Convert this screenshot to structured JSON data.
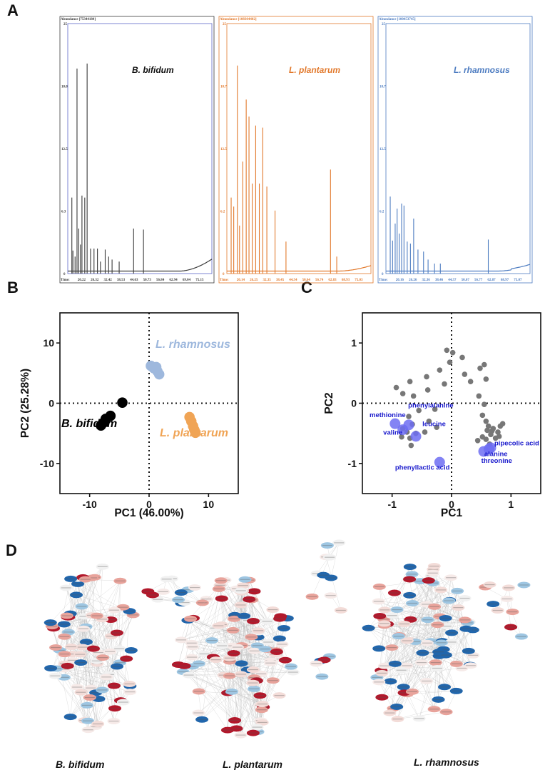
{
  "panels": {
    "a": "A",
    "b": "B",
    "c": "C",
    "d": "D"
  },
  "chart_data": [
    {
      "type": "line",
      "panel": "A",
      "subplots": [
        {
          "title": "B. bifidum",
          "abundance_label": "Abundance [75344184]",
          "color": "#3a3a3a",
          "ytick_labels": [
            "25",
            "18.8",
            "12.5",
            "6.3",
            "0"
          ],
          "ylim": [
            0,
            25
          ],
          "time_label": "Time:",
          "time_ticks": [
            "20.22",
            "26.32",
            "32.42",
            "38.53",
            "44.63",
            "50.73",
            "56.84",
            "62.94",
            "69.04",
            "75.15"
          ],
          "xlim": [
            14,
            81
          ],
          "peaks": [
            {
              "x": 15.9,
              "y": 7.6
            },
            {
              "x": 16.4,
              "y": 2.3
            },
            {
              "x": 17.4,
              "y": 1.7
            },
            {
              "x": 18.3,
              "y": 20.5
            },
            {
              "x": 19.1,
              "y": 4.5
            },
            {
              "x": 19.9,
              "y": 2.9
            },
            {
              "x": 20.6,
              "y": 7.8
            },
            {
              "x": 21.9,
              "y": 7.6
            },
            {
              "x": 23.0,
              "y": 21.0
            },
            {
              "x": 24.6,
              "y": 2.5
            },
            {
              "x": 26.2,
              "y": 2.5
            },
            {
              "x": 27.8,
              "y": 2.5
            },
            {
              "x": 29.2,
              "y": 1.2
            },
            {
              "x": 31.4,
              "y": 2.4
            },
            {
              "x": 33.0,
              "y": 1.7
            },
            {
              "x": 34.6,
              "y": 1.4
            },
            {
              "x": 37.9,
              "y": 1.2
            },
            {
              "x": 44.6,
              "y": 4.5
            },
            {
              "x": 49.2,
              "y": 4.4
            }
          ]
        },
        {
          "title": "L. plantarum",
          "abundance_label": "Abundance [108304402]",
          "color": "#e2792c",
          "ytick_labels": [
            "25",
            "18.7",
            "12.5",
            "6.2",
            "0"
          ],
          "ylim": [
            0,
            25
          ],
          "time_label": "Time:",
          "time_ticks": [
            "20.14",
            "26.25",
            "32.35",
            "38.45",
            "44.54",
            "50.64",
            "56.74",
            "62.83",
            "68.93",
            "75.03"
          ],
          "xlim": [
            14,
            81
          ],
          "peaks": [
            {
              "x": 16.0,
              "y": 7.6
            },
            {
              "x": 17.2,
              "y": 6.7
            },
            {
              "x": 18.9,
              "y": 20.8
            },
            {
              "x": 19.9,
              "y": 4.8
            },
            {
              "x": 21.4,
              "y": 11.2
            },
            {
              "x": 23.0,
              "y": 17.4
            },
            {
              "x": 24.3,
              "y": 15.7
            },
            {
              "x": 25.8,
              "y": 9.0
            },
            {
              "x": 27.4,
              "y": 14.8
            },
            {
              "x": 29.1,
              "y": 9.0
            },
            {
              "x": 30.7,
              "y": 14.6
            },
            {
              "x": 32.6,
              "y": 8.7
            },
            {
              "x": 36.4,
              "y": 6.3
            },
            {
              "x": 41.5,
              "y": 3.2
            },
            {
              "x": 62.2,
              "y": 10.4
            },
            {
              "x": 65.1,
              "y": 1.7
            }
          ]
        },
        {
          "title": "L. rhamnosus",
          "abundance_label": "Abundance [100453745]",
          "color": "#4d7cc1",
          "ytick_labels": [
            "25",
            "18.7",
            "12.5",
            "6.2",
            "0"
          ],
          "ylim": [
            0,
            25
          ],
          "time_label": "Time:",
          "time_ticks": [
            "20.16",
            "26.26",
            "32.36",
            "38.46",
            "44.57",
            "50.67",
            "56.77",
            "62.87",
            "68.97",
            "75.07"
          ],
          "xlim": [
            14,
            81
          ],
          "peaks": [
            {
              "x": 16.0,
              "y": 7.7
            },
            {
              "x": 17.1,
              "y": 3.3
            },
            {
              "x": 18.3,
              "y": 5.0
            },
            {
              "x": 19.2,
              "y": 6.5
            },
            {
              "x": 20.2,
              "y": 4.0
            },
            {
              "x": 21.3,
              "y": 7.0
            },
            {
              "x": 22.4,
              "y": 6.8
            },
            {
              "x": 23.9,
              "y": 3.2
            },
            {
              "x": 25.4,
              "y": 3.0
            },
            {
              "x": 26.9,
              "y": 5.5
            },
            {
              "x": 28.9,
              "y": 2.4
            },
            {
              "x": 31.5,
              "y": 2.2
            },
            {
              "x": 33.6,
              "y": 1.4
            },
            {
              "x": 36.6,
              "y": 1.0
            },
            {
              "x": 39.3,
              "y": 1.0
            },
            {
              "x": 61.6,
              "y": 3.4
            }
          ]
        }
      ]
    },
    {
      "type": "scatter",
      "panel": "B",
      "xlabel": "PC1 (46.00%)",
      "ylabel": "PC2 (25.28%)",
      "xlim": [
        -15,
        15
      ],
      "ylim": [
        -15,
        15
      ],
      "xticks": [
        -10,
        0,
        10
      ],
      "yticks": [
        -10,
        0,
        10
      ],
      "series": [
        {
          "name": "B. bifidum",
          "color": "#000000",
          "points": [
            [
              -4.5,
              0.1
            ],
            [
              -6.5,
              -2.1
            ],
            [
              -7.3,
              -2.6
            ],
            [
              -7.6,
              -3.2
            ],
            [
              -8.1,
              -3.7
            ]
          ]
        },
        {
          "name": "L. rhamnosus",
          "color": "#9eb8dd",
          "points": [
            [
              0.3,
              6.2
            ],
            [
              0.8,
              5.8
            ],
            [
              1.2,
              6.0
            ],
            [
              1.4,
              5.3
            ],
            [
              1.7,
              4.8
            ]
          ]
        },
        {
          "name": "L. plantarum",
          "color": "#f0a455",
          "points": [
            [
              6.8,
              -2.3
            ],
            [
              7.1,
              -3.0
            ],
            [
              7.4,
              -3.8
            ],
            [
              7.6,
              -4.4
            ],
            [
              7.8,
              -4.9
            ]
          ]
        }
      ]
    },
    {
      "type": "scatter",
      "panel": "C",
      "xlabel": "PC1",
      "ylabel": "PC2",
      "xlim": [
        -1.5,
        1.5
      ],
      "ylim": [
        -1.5,
        1.5
      ],
      "xticks": [
        -1,
        0,
        1
      ],
      "yticks": [
        -1,
        0,
        1
      ],
      "tick_labels_x": [
        "-1",
        "0",
        "1"
      ],
      "tick_labels_y": [
        "-1",
        "0",
        "1"
      ],
      "background_points": [
        [
          -0.08,
          0.88
        ],
        [
          0.02,
          0.84
        ],
        [
          -0.03,
          0.68
        ],
        [
          0.18,
          0.76
        ],
        [
          0.48,
          0.58
        ],
        [
          0.55,
          0.64
        ],
        [
          0.22,
          0.48
        ],
        [
          0.58,
          0.4
        ],
        [
          -0.2,
          0.55
        ],
        [
          -0.42,
          0.44
        ],
        [
          -0.12,
          0.32
        ],
        [
          0.32,
          0.36
        ],
        [
          -0.7,
          0.36
        ],
        [
          -0.93,
          0.26
        ],
        [
          -0.4,
          0.22
        ],
        [
          -0.82,
          0.16
        ],
        [
          -0.64,
          0.12
        ],
        [
          0.46,
          0.12
        ],
        [
          0.55,
          -0.02
        ],
        [
          0.52,
          -0.2
        ],
        [
          0.58,
          -0.3
        ],
        [
          -0.28,
          -0.1
        ],
        [
          -0.55,
          -0.12
        ],
        [
          -0.38,
          -0.3
        ],
        [
          -0.72,
          -0.22
        ],
        [
          -0.66,
          -0.35
        ],
        [
          -0.82,
          -0.42
        ],
        [
          -0.75,
          -0.48
        ],
        [
          -0.6,
          -0.5
        ],
        [
          -0.7,
          -0.58
        ],
        [
          -0.68,
          -0.7
        ],
        [
          -0.84,
          -0.56
        ],
        [
          -0.45,
          -0.48
        ],
        [
          -0.25,
          -0.4
        ],
        [
          0.62,
          -0.38
        ],
        [
          0.7,
          -0.42
        ],
        [
          0.78,
          -0.48
        ],
        [
          0.66,
          -0.52
        ],
        [
          0.74,
          -0.58
        ],
        [
          0.58,
          -0.6
        ],
        [
          0.82,
          -0.38
        ],
        [
          0.86,
          -0.34
        ],
        [
          0.64,
          -0.68
        ],
        [
          0.52,
          -0.56
        ],
        [
          0.68,
          -0.46
        ],
        [
          0.44,
          -0.62
        ],
        [
          0.8,
          -0.55
        ],
        [
          0.6,
          -0.45
        ]
      ],
      "highlighted": [
        {
          "name": "methionine",
          "x": -0.95,
          "y": -0.34
        },
        {
          "name": "valine",
          "x": -0.82,
          "y": -0.44
        },
        {
          "name": "phenylalanine",
          "x": -0.72,
          "y": -0.36
        },
        {
          "name": "leucine",
          "x": -0.6,
          "y": -0.55
        },
        {
          "name": "phenyllactic acid",
          "x": -0.2,
          "y": -0.98
        },
        {
          "name": "pipecolic acid",
          "x": 0.66,
          "y": -0.74
        },
        {
          "name": "alanine",
          "x": 0.63,
          "y": -0.76
        },
        {
          "name": "threonine",
          "x": 0.54,
          "y": -0.8
        }
      ]
    }
  ],
  "panel_b_labels": {
    "rhamnosus": "L. rhamnosus",
    "bifidum": "B. bifidum",
    "plantarum": "L. plantarum"
  },
  "panel_d": {
    "labels": [
      "B. bifidum",
      "L. plantarum",
      "L. rhamnosus"
    ],
    "colors": {
      "dark_red": "#b2182b",
      "light_red": "#e8a39b",
      "pale": "#f3dcd8",
      "dark_blue": "#2166ac",
      "light_blue": "#9ec6e2"
    }
  }
}
